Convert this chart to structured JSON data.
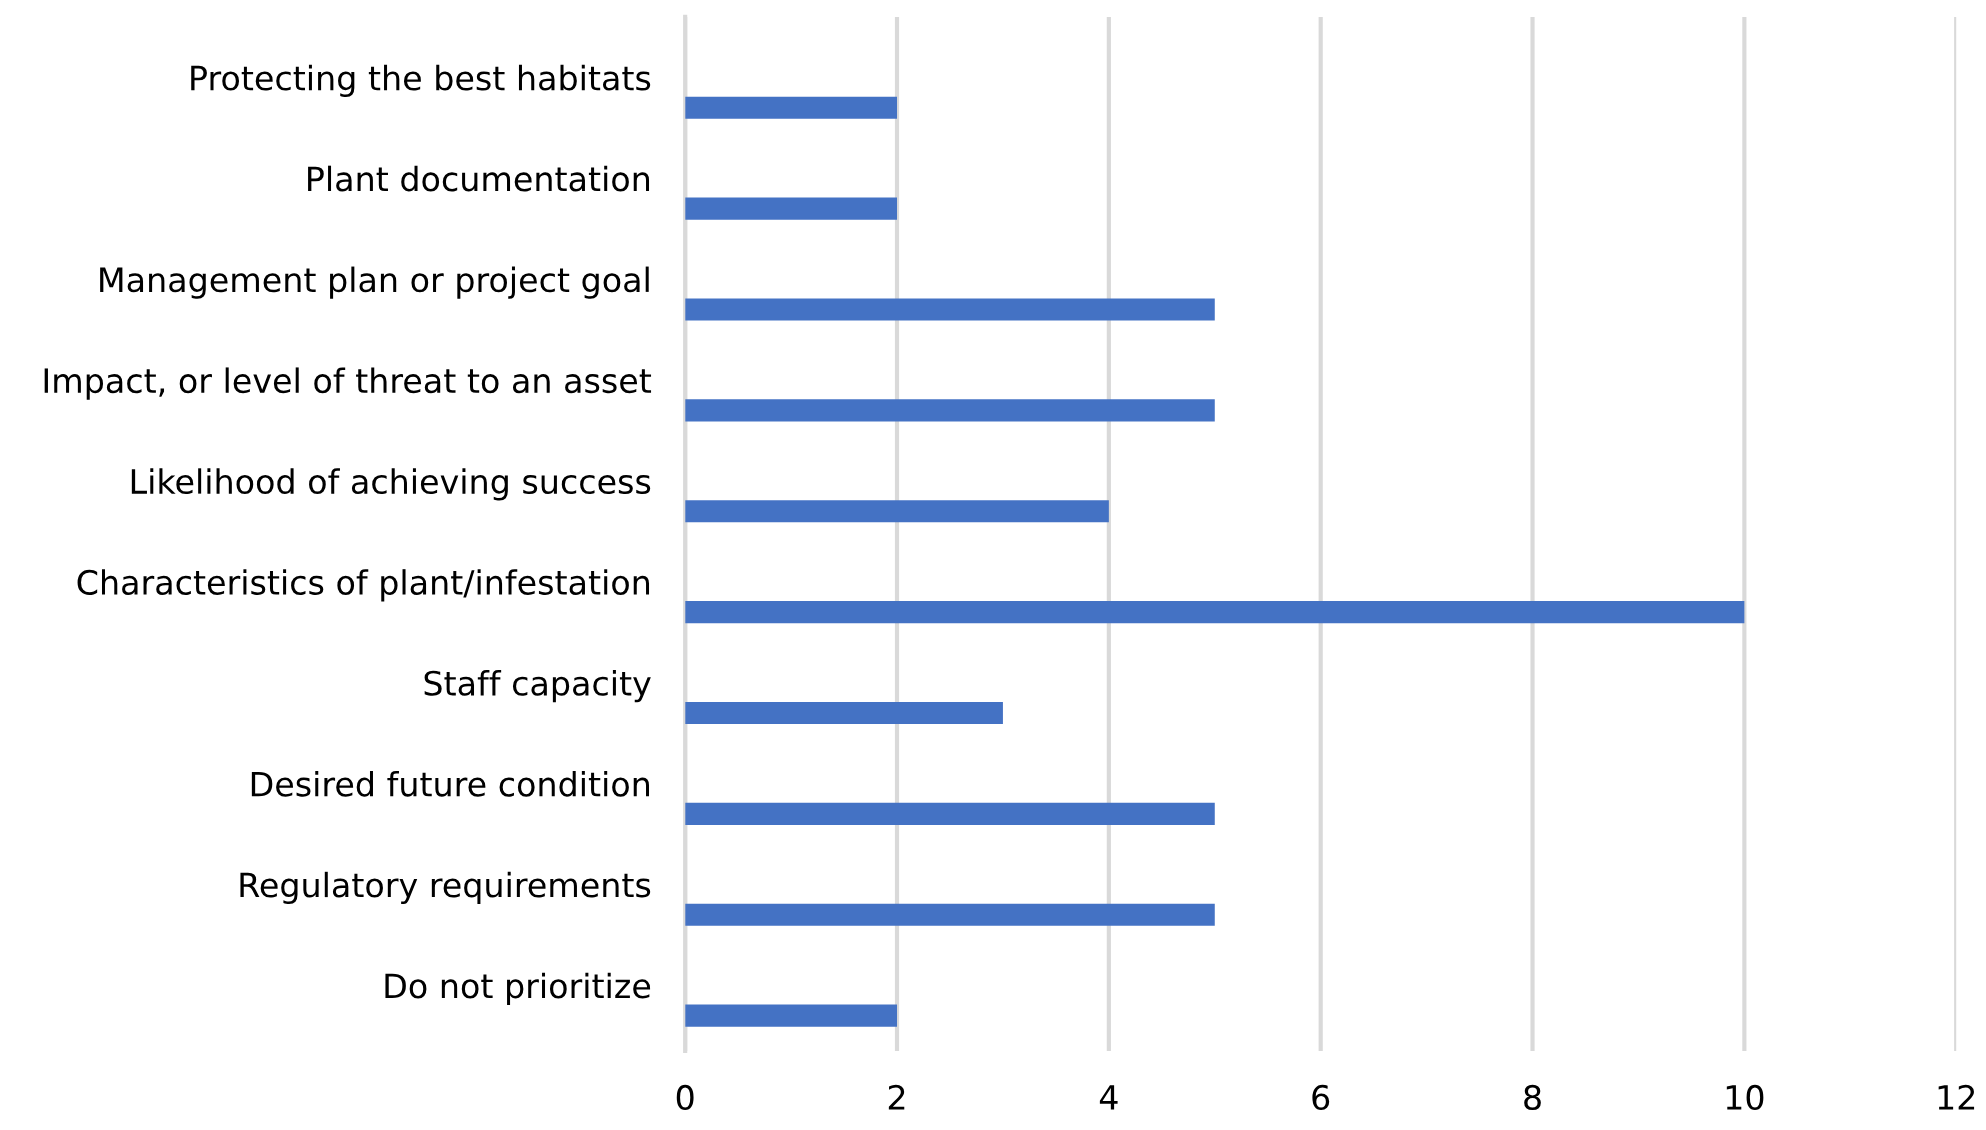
{
  "chart_data": {
    "type": "bar",
    "orientation": "horizontal",
    "categories": [
      "Protecting the best habitats",
      "Plant documentation",
      "Management plan or project goal",
      "Impact, or level of threat to an asset",
      "Likelihood of achieving success",
      "Characteristics of plant/infestation",
      "Staff capacity",
      "Desired future condition",
      "Regulatory requirements",
      "Do not prioritize"
    ],
    "values": [
      2,
      2,
      5,
      5,
      4,
      10,
      3,
      5,
      5,
      2
    ],
    "color": "#4472c4",
    "xlim": [
      0,
      12
    ],
    "xticks": [
      0,
      2,
      4,
      6,
      8,
      10,
      12
    ],
    "grid": "x",
    "legend": false
  }
}
